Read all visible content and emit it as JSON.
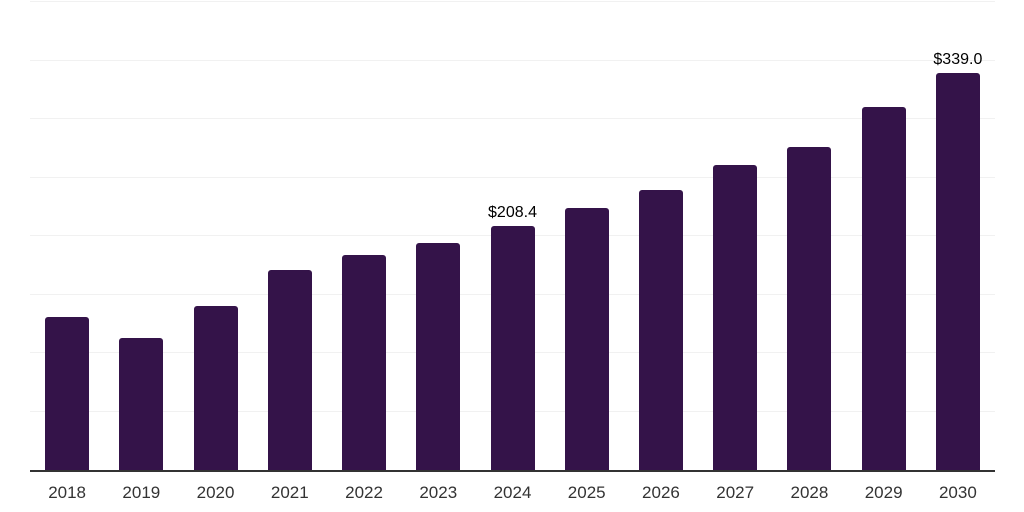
{
  "chart_data": {
    "type": "bar",
    "title": "",
    "xlabel": "",
    "ylabel": "",
    "categories": [
      "2018",
      "2019",
      "2020",
      "2021",
      "2022",
      "2023",
      "2024",
      "2025",
      "2026",
      "2027",
      "2028",
      "2029",
      "2030"
    ],
    "values": [
      130.5,
      112.6,
      139.9,
      170.6,
      183.4,
      194.2,
      208.4,
      224.0,
      239.5,
      261.0,
      275.7,
      310.4,
      339.0
    ],
    "data_labels": {
      "2024": "$208.4",
      "2030": "$339.0"
    },
    "value_prefix": "$",
    "ylim": [
      0,
      400
    ],
    "gridline_step": 50,
    "grid": "horizontal-only",
    "legend": "none",
    "y_axis_labels_visible": false,
    "colors": {
      "bar": "#341349",
      "axis_line": "#333333",
      "gridline": "#f1f1f1",
      "tick_label": "#333333",
      "data_label": "#000000",
      "background": "#ffffff"
    }
  }
}
